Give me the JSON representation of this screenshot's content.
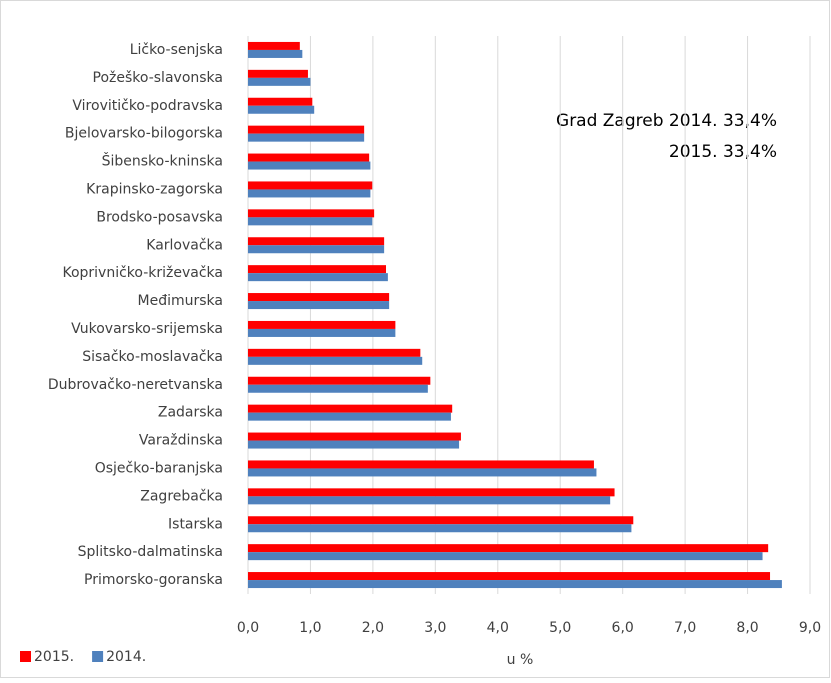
{
  "chart_data": {
    "type": "hbar",
    "categories": [
      "Ličko-senjska",
      "Požeško-slavonska",
      "Virovitičko-podravska",
      "Bjelovarsko-bilogorska",
      "Šibensko-kninska",
      "Krapinsko-zagorska",
      "Brodsko-posavska",
      "Karlovačka",
      "Koprivničko-križevačka",
      "Međimurska",
      "Vukovarsko-srijemska",
      "Sisačko-moslavačka",
      "Dubrovačko-neretvanska",
      "Zadarska",
      "Varaždinska",
      "Osječko-baranjska",
      "Zagrebačka",
      "Istarska",
      "Splitsko-dalmatinska",
      "Primorsko-goranska"
    ],
    "series": [
      {
        "name": "2015.",
        "color": "#ff0000",
        "values": [
          0.83,
          0.96,
          1.03,
          1.86,
          1.94,
          1.99,
          2.02,
          2.18,
          2.21,
          2.26,
          2.36,
          2.76,
          2.92,
          3.27,
          3.41,
          5.54,
          5.87,
          6.17,
          8.33,
          8.36
        ]
      },
      {
        "name": "2014.",
        "color": "#4f81bd",
        "values": [
          0.87,
          1.0,
          1.06,
          1.86,
          1.96,
          1.96,
          1.99,
          2.18,
          2.24,
          2.26,
          2.36,
          2.79,
          2.88,
          3.25,
          3.38,
          5.58,
          5.8,
          6.14,
          8.24,
          8.55
        ]
      }
    ],
    "xlim": [
      0,
      9
    ],
    "xticks": [
      {
        "value": 0,
        "label": "0,0"
      },
      {
        "value": 1,
        "label": "1,0"
      },
      {
        "value": 2,
        "label": "2,0"
      },
      {
        "value": 3,
        "label": "3,0"
      },
      {
        "value": 4,
        "label": "4,0"
      },
      {
        "value": 5,
        "label": "5,0"
      },
      {
        "value": 6,
        "label": "6,0"
      },
      {
        "value": 7,
        "label": "7,0"
      },
      {
        "value": 8,
        "label": "8,0"
      },
      {
        "value": 9,
        "label": "9,0"
      }
    ],
    "xlabel": "u %",
    "annotations": [
      "Grad Zagreb 2014. 33,4%",
      "2015. 33,4%"
    ],
    "grid": true,
    "legend": "bottom-left"
  }
}
